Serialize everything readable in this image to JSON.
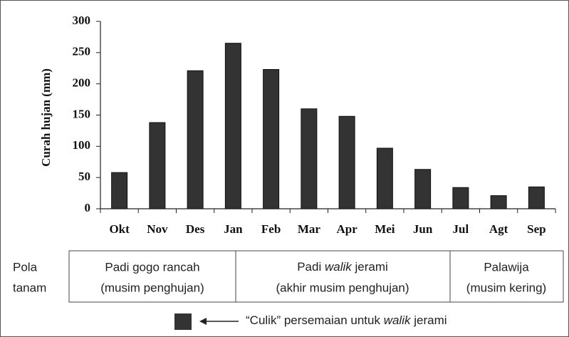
{
  "chart_data": {
    "type": "bar",
    "y_label": "Curah hujan (mm)",
    "categories": [
      "Okt",
      "Nov",
      "Des",
      "Jan",
      "Feb",
      "Mar",
      "Apr",
      "Mei",
      "Jun",
      "Jul",
      "Agt",
      "Sep"
    ],
    "values": [
      58,
      138,
      221,
      265,
      223,
      160,
      148,
      97,
      63,
      34,
      21,
      35
    ],
    "color": "#333333",
    "ylim": [
      0,
      300
    ],
    "yticks": [
      0,
      50,
      100,
      150,
      200,
      250,
      300
    ]
  },
  "table": {
    "row_label": [
      "Pola",
      "tanam"
    ],
    "cells": [
      {
        "lines": [
          [
            "Padi gogo rancah"
          ],
          [
            "(musim penghujan)"
          ]
        ]
      },
      {
        "lines": [
          [
            "Padi ",
            "walik",
            " jerami"
          ],
          [
            "(akhir musim penghujan)"
          ]
        ]
      },
      {
        "lines": [
          [
            "Palawija"
          ],
          [
            "(musim kering)"
          ]
        ]
      }
    ]
  },
  "legend": {
    "text": [
      "“Culik” persemaian untuk ",
      "walik",
      " jerami"
    ]
  }
}
